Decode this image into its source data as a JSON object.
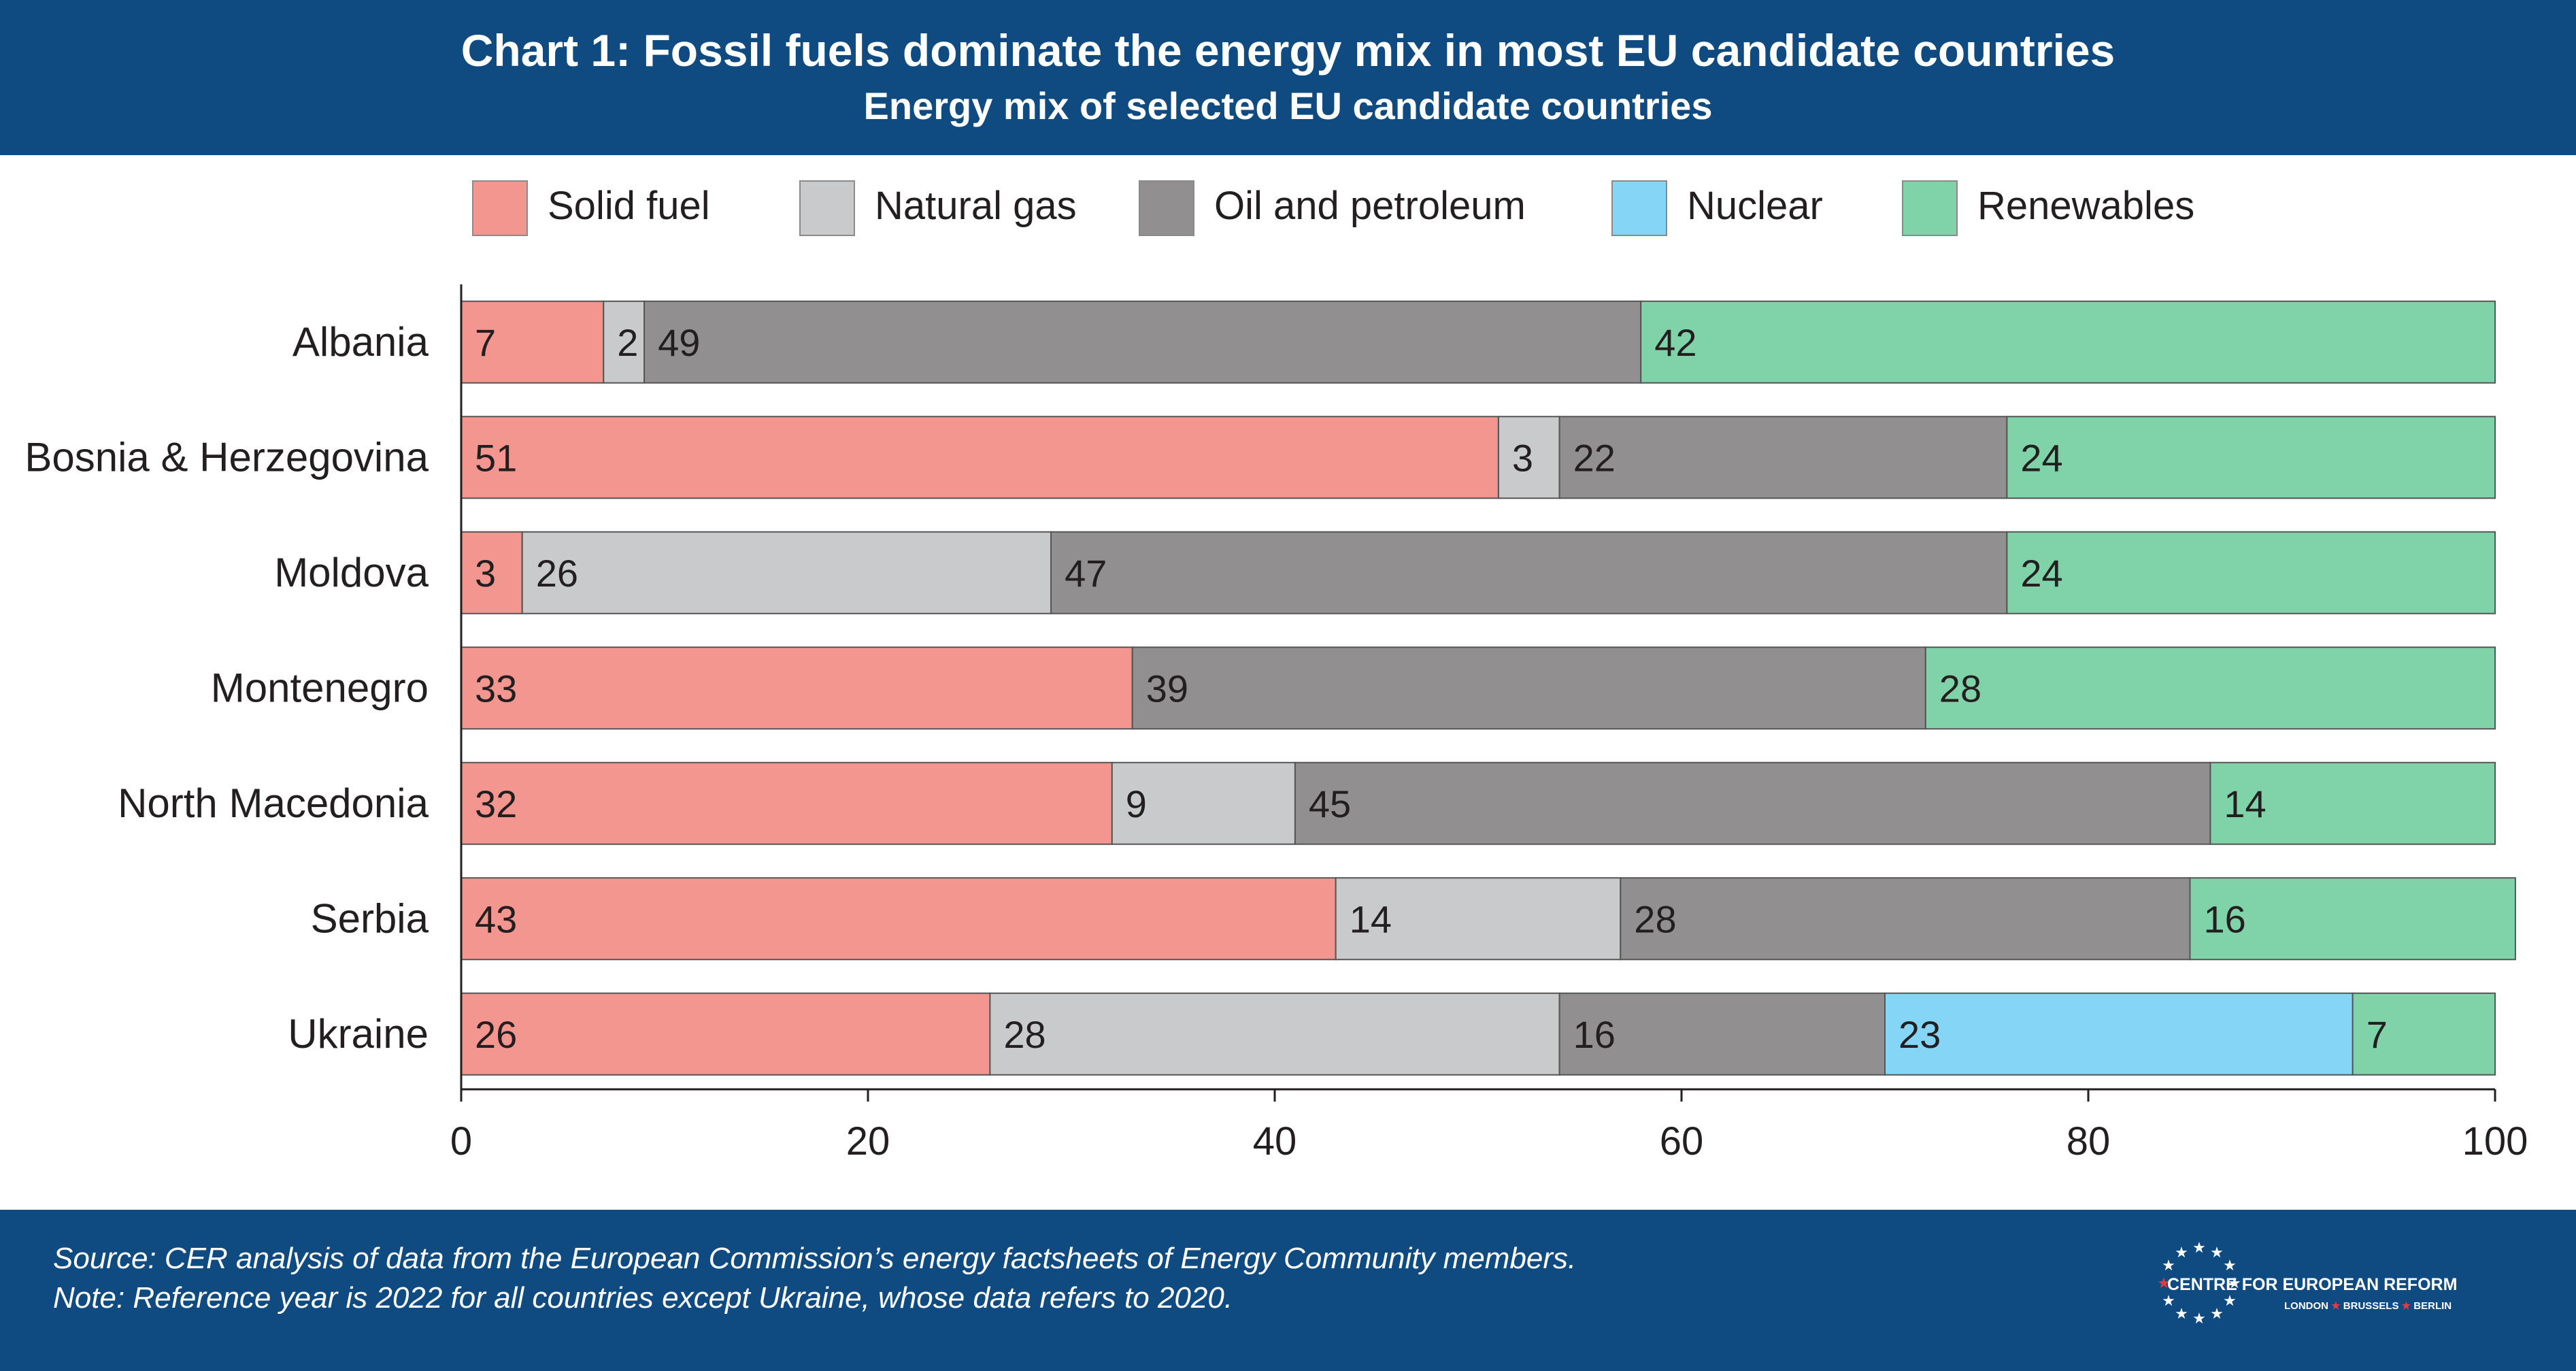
{
  "header": {
    "title": "Chart 1: Fossil fuels dominate the energy mix in most EU candidate countries",
    "subtitle": "Energy mix of selected EU candidate countries"
  },
  "colors": {
    "header_bg": "#0f4a80",
    "solid_fuel": "#f3968f",
    "natural_gas": "#c9cacc",
    "oil": "#918f90",
    "nuclear": "#84d5f6",
    "renewables": "#80d2a8",
    "logo_star": "#e23b45"
  },
  "chart_data": {
    "type": "bar",
    "orientation": "horizontal",
    "stacked": true,
    "categories": [
      "Albania",
      "Bosnia & Herzegovina",
      "Moldova",
      "Montenegro",
      "North Macedonia",
      "Serbia",
      "Ukraine"
    ],
    "series": [
      {
        "name": "Solid fuel",
        "values": [
          7,
          51,
          3,
          33,
          32,
          43,
          26
        ]
      },
      {
        "name": "Natural gas",
        "values": [
          2,
          3,
          26,
          0,
          9,
          14,
          28
        ]
      },
      {
        "name": "Oil and petroleum",
        "values": [
          49,
          22,
          47,
          39,
          45,
          28,
          16
        ]
      },
      {
        "name": "Nuclear",
        "values": [
          0,
          0,
          0,
          0,
          0,
          0,
          23
        ]
      },
      {
        "name": "Renewables",
        "values": [
          42,
          24,
          24,
          28,
          14,
          16,
          7
        ]
      }
    ],
    "xlim": [
      0,
      100
    ],
    "xticks": [
      0,
      20,
      40,
      60,
      80,
      100
    ],
    "legend_position": "top",
    "grid": false
  },
  "footer": {
    "source_note": "Source: CER analysis of data from the European Commission’s energy factsheets of Energy Community members.",
    "ref_note": "Note: Reference year is 2022 for all countries except Ukraine, whose data refers to 2020.",
    "logo_name": "CENTRE FOR EUROPEAN REFORM",
    "logo_cities": [
      "LONDON",
      "BRUSSELS",
      "BERLIN"
    ]
  }
}
